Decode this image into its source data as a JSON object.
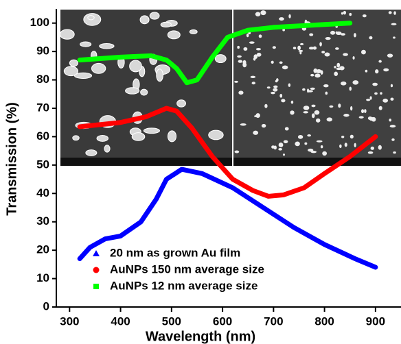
{
  "chart_data": {
    "type": "line",
    "xlabel": "Wavelength (nm)",
    "ylabel": "Transmission (%)",
    "xlim": [
      274,
      950
    ],
    "ylim": [
      0,
      105
    ],
    "xticks": [
      300,
      400,
      500,
      600,
      700,
      800,
      900
    ],
    "yticks": [
      0,
      10,
      20,
      30,
      40,
      50,
      60,
      70,
      80,
      90,
      100
    ],
    "series": [
      {
        "name": "20 nm as grown Au film",
        "color": "#0000ff",
        "marker": "triangle",
        "x": [
          320,
          340,
          370,
          400,
          440,
          470,
          490,
          520,
          560,
          620,
          680,
          740,
          800,
          860,
          900
        ],
        "values": [
          17,
          21,
          24,
          25,
          30,
          38,
          45,
          48.5,
          47,
          42,
          35,
          28,
          22,
          17,
          14
        ]
      },
      {
        "name": "AuNPs 150 nm average size",
        "color": "#ff0000",
        "marker": "circle",
        "x": [
          320,
          400,
          450,
          490,
          510,
          540,
          580,
          620,
          660,
          690,
          720,
          760,
          800,
          850,
          900
        ],
        "values": [
          63.5,
          65,
          67,
          70,
          69,
          63,
          53,
          45,
          41,
          39,
          39.5,
          42,
          47,
          53,
          60
        ]
      },
      {
        "name": "AuNPs  12 nm average size",
        "color": "#00ff00",
        "marker": "square",
        "x": [
          320,
          400,
          460,
          490,
          510,
          530,
          550,
          580,
          610,
          650,
          700,
          800,
          850
        ],
        "values": [
          87,
          88,
          88.5,
          87,
          84,
          79,
          80,
          88,
          95,
          97.5,
          98.5,
          99.5,
          100
        ]
      }
    ]
  }
}
